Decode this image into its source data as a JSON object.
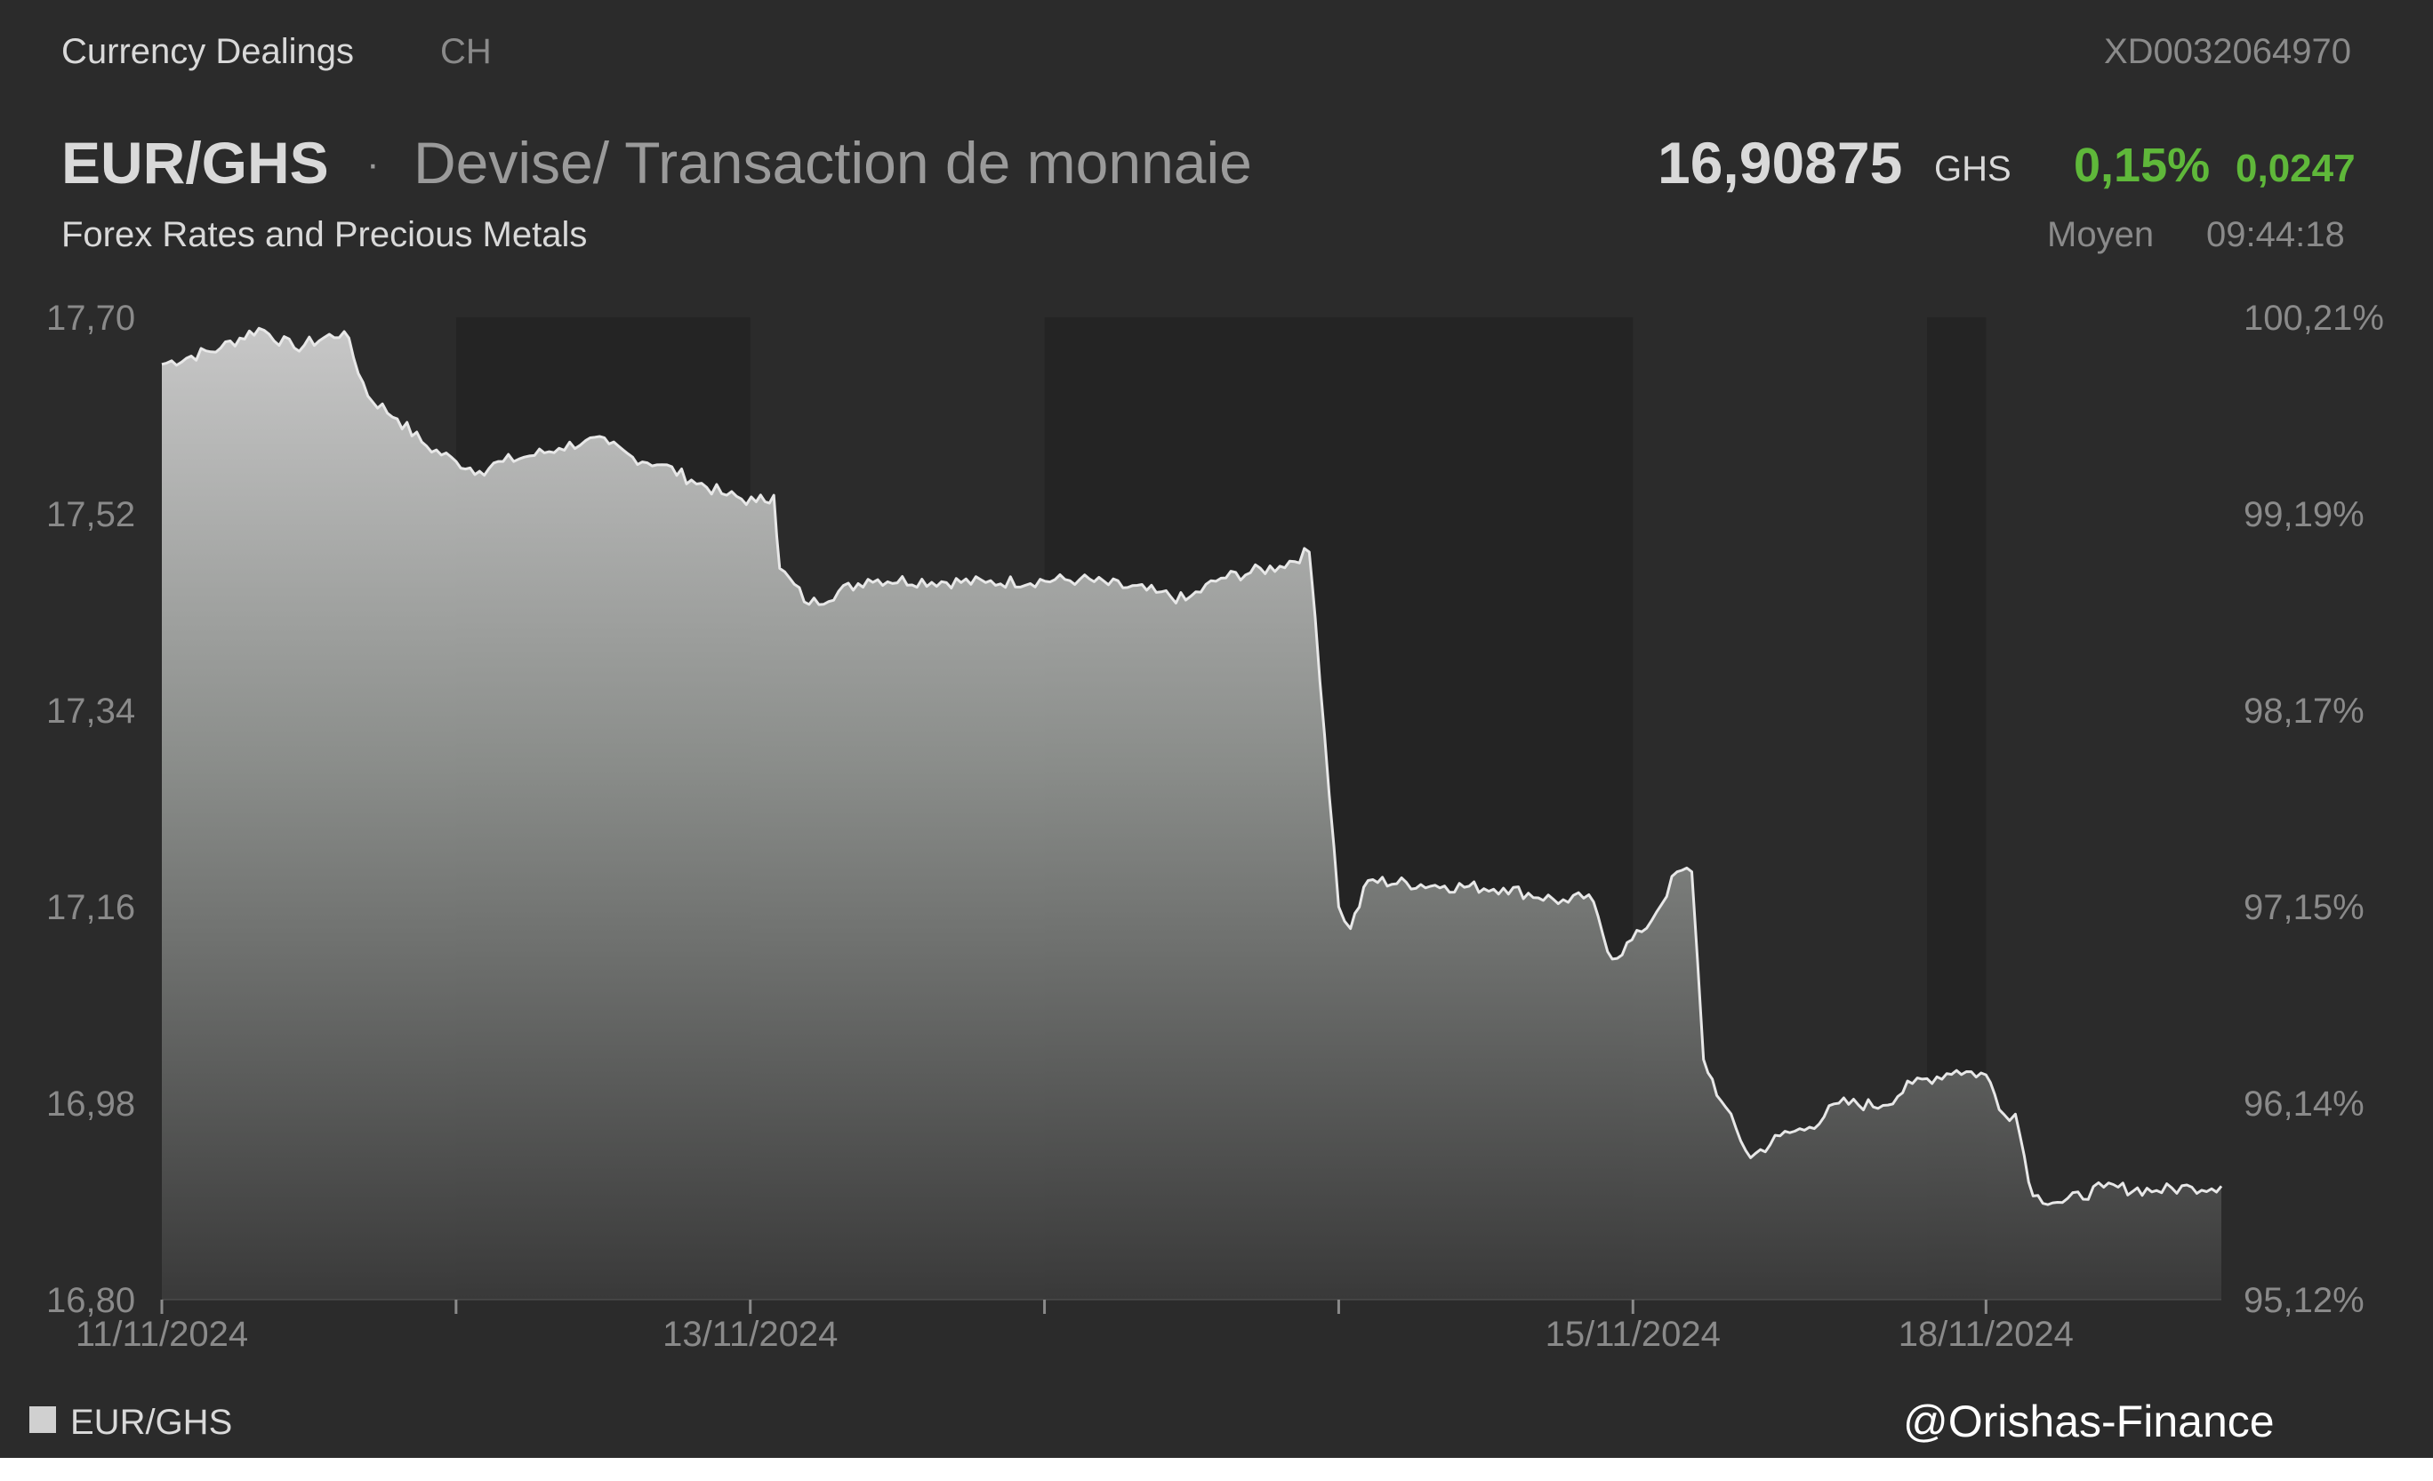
{
  "header": {
    "provider": "Currency Dealings",
    "country": "CH",
    "isin": "XD0032064970",
    "symbol": "EUR/GHS",
    "separator": "·",
    "description": "Devise/ Transaction de monnaie",
    "subtitle": "Forex Rates and Precious Metals",
    "price": "16,90875",
    "currency": "GHS",
    "change_pct": "0,15%",
    "change_abs": "0,0247",
    "price_type": "Moyen",
    "time": "09:44:18"
  },
  "colors": {
    "background": "#2b2b2b",
    "positive": "#5fb83a",
    "line": "#e8e8e8",
    "area_top": "#cfcfcf",
    "area_bottom": "#3a3a3a"
  },
  "watermark": "@Orishas-Finance",
  "chart_data": {
    "type": "area",
    "series": [
      {
        "name": "EUR/GHS",
        "points": [
          [
            0.0,
            17.657
          ],
          [
            0.2,
            17.672
          ],
          [
            0.33,
            17.69
          ],
          [
            0.45,
            17.672
          ],
          [
            0.62,
            17.687
          ],
          [
            0.7,
            17.628
          ],
          [
            0.8,
            17.607
          ],
          [
            0.9,
            17.582
          ],
          [
            1.0,
            17.568
          ],
          [
            1.08,
            17.559
          ],
          [
            1.16,
            17.568
          ],
          [
            1.25,
            17.573
          ],
          [
            1.35,
            17.58
          ],
          [
            1.44,
            17.587
          ],
          [
            1.52,
            17.584
          ],
          [
            1.6,
            17.572
          ],
          [
            1.7,
            17.565
          ],
          [
            1.8,
            17.551
          ],
          [
            1.92,
            17.537
          ],
          [
            2.02,
            17.531
          ],
          [
            2.08,
            17.537
          ],
          [
            2.1,
            17.47
          ],
          [
            2.2,
            17.437
          ],
          [
            2.4,
            17.46
          ],
          [
            2.8,
            17.457
          ],
          [
            3.12,
            17.46
          ],
          [
            3.38,
            17.448
          ],
          [
            3.48,
            17.441
          ],
          [
            3.6,
            17.461
          ],
          [
            3.8,
            17.472
          ],
          [
            3.9,
            17.485
          ],
          [
            3.92,
            17.425
          ],
          [
            4.0,
            17.16
          ],
          [
            4.04,
            17.14
          ],
          [
            4.1,
            17.184
          ],
          [
            4.36,
            17.179
          ],
          [
            4.56,
            17.177
          ],
          [
            4.78,
            17.164
          ],
          [
            4.85,
            17.171
          ],
          [
            4.93,
            17.112
          ],
          [
            5.03,
            17.137
          ],
          [
            5.08,
            17.155
          ],
          [
            5.15,
            17.192
          ],
          [
            5.2,
            17.192
          ],
          [
            5.24,
            17.02
          ],
          [
            5.3,
            16.982
          ],
          [
            5.4,
            16.93
          ],
          [
            5.5,
            16.95
          ],
          [
            5.6,
            16.958
          ],
          [
            5.7,
            16.98
          ],
          [
            5.85,
            16.978
          ],
          [
            5.95,
            16.998
          ],
          [
            6.1,
            17.01
          ],
          [
            6.2,
            17.006
          ],
          [
            6.26,
            16.97
          ],
          [
            6.3,
            16.97
          ],
          [
            6.36,
            16.895
          ],
          [
            6.46,
            16.889
          ],
          [
            6.6,
            16.903
          ],
          [
            6.78,
            16.9
          ],
          [
            6.9,
            16.903
          ],
          [
            7.0,
            16.904
          ]
        ]
      }
    ],
    "x_tick_labels": [
      {
        "x": 0.0,
        "label": "11/11/2024"
      },
      {
        "x": 2.0,
        "label": "13/11/2024"
      },
      {
        "x": 5.0,
        "label": "15/11/2024"
      },
      {
        "x": 6.2,
        "label": "18/11/2024"
      }
    ],
    "x_tick_marks": [
      0.0,
      1.0,
      2.0,
      3.0,
      4.0,
      5.0,
      6.2
    ],
    "session_shading": [
      [
        1.0,
        2.0
      ],
      [
        3.0,
        5.0
      ],
      [
        6.0,
        6.2
      ]
    ],
    "xlim": [
      0.0,
      7.0
    ],
    "ylim": [
      16.8,
      17.7
    ],
    "y_ticks_left": [
      "17,70",
      "17,52",
      "17,34",
      "17,16",
      "16,98",
      "16,80"
    ],
    "y_ticks_right": [
      "100,21%",
      "99,19%",
      "98,17%",
      "97,15%",
      "96,14%",
      "95,12%"
    ],
    "grid": false,
    "legend": {
      "label": "EUR/GHS",
      "placement": "bottom-left"
    }
  }
}
